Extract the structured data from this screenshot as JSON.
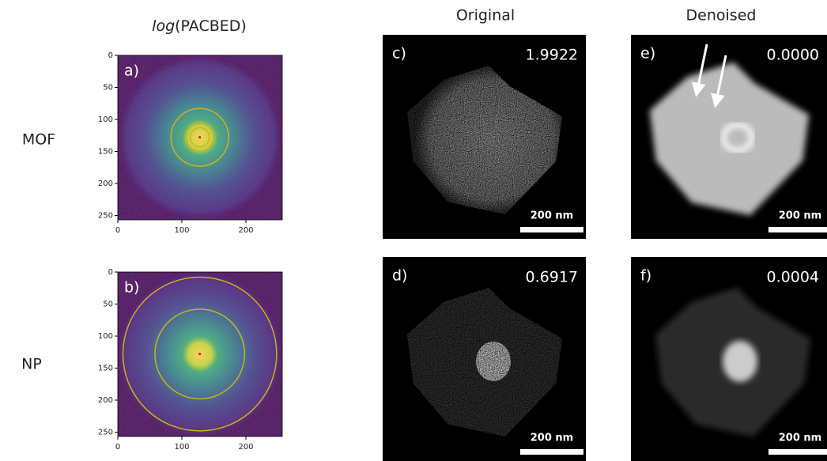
{
  "header": {
    "title": {
      "italic": "log",
      "rest": "(PACBED)"
    },
    "columns": [
      "Original",
      "Denoised"
    ]
  },
  "rows": [
    "MOF",
    "NP"
  ],
  "pacbed": {
    "panels": [
      {
        "label": "a)"
      },
      {
        "label": "b)"
      }
    ],
    "yticks": [
      0,
      50,
      100,
      150,
      200,
      250
    ],
    "xticks": [
      0,
      100,
      200
    ]
  },
  "images": [
    {
      "label": "c)",
      "value": "1.9922",
      "scale_bar": "200 nm"
    },
    {
      "label": "d)",
      "value": "0.6917",
      "scale_bar": "200 nm"
    },
    {
      "label": "e)",
      "value": "0.0000",
      "scale_bar": "200 nm"
    },
    {
      "label": "f)",
      "value": "0.0004",
      "scale_bar": "200 nm"
    }
  ]
}
